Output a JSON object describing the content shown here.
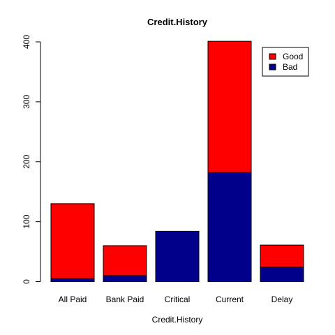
{
  "chart_data": {
    "type": "bar",
    "stacked": true,
    "title": "Credit.History",
    "xlabel": "Credit.History",
    "ylabel": "",
    "categories": [
      "All Paid",
      "Bank Paid",
      "Critical",
      "Current",
      "Delay"
    ],
    "series": [
      {
        "name": "Bad",
        "color": "#00008b",
        "values": [
          5,
          10,
          84,
          182,
          24
        ]
      },
      {
        "name": "Good",
        "color": "#ff0000",
        "values": [
          125,
          50,
          0,
          219,
          37
        ]
      }
    ],
    "ylim": [
      0,
      400
    ],
    "yticks": [
      0,
      100,
      200,
      300,
      400
    ],
    "grid": false,
    "legend": {
      "position": "top-right",
      "entries": [
        {
          "name": "Good",
          "color": "#ff0000"
        },
        {
          "name": "Bad",
          "color": "#00008b"
        }
      ]
    }
  }
}
